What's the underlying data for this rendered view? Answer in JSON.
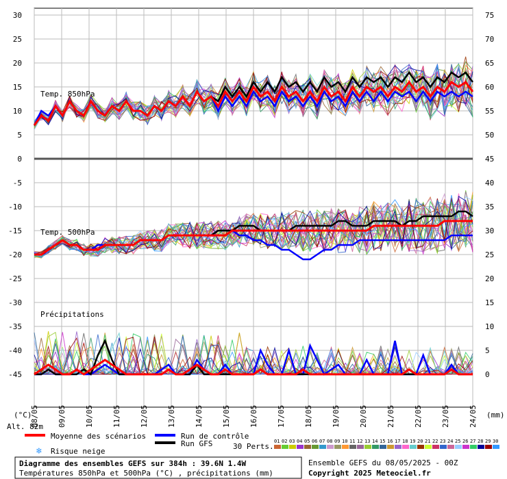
{
  "chart_data": {
    "type": "line",
    "panels": [
      {
        "name": "Temp. 850hPa",
        "left_ticks": [
          "30",
          "25",
          "20",
          "15",
          "10",
          "5",
          "0"
        ],
        "right_ticks": [
          "75",
          "70",
          "65",
          "60",
          "55",
          "50",
          "45"
        ],
        "series": [
          {
            "name": "Moyenne des scénarios",
            "color": "#ff0000",
            "values": [
              7,
              9,
              8,
              11,
              9,
              12,
              10,
              9,
              12,
              10,
              9,
              11,
              10,
              12,
              10,
              10,
              9,
              11,
              10,
              12,
              11,
              13,
              11,
              14,
              12,
              13,
              11,
              14,
              12,
              14,
              12,
              15,
              13,
              14,
              12,
              15,
              13,
              14,
              12,
              14,
              12,
              15,
              13,
              14,
              12,
              15,
              13,
              15,
              14,
              15,
              13,
              15,
              14,
              16,
              14,
              15,
              13,
              15,
              14,
              16,
              15,
              16,
              14
            ]
          },
          {
            "name": "Run de contrôle",
            "color": "#0000ff",
            "values": [
              7,
              10,
              9,
              11,
              9,
              12,
              10,
              9,
              12,
              10,
              9,
              11,
              10,
              12,
              10,
              10,
              9,
              11,
              10,
              12,
              11,
              13,
              11,
              14,
              12,
              13,
              10,
              13,
              11,
              13,
              11,
              14,
              12,
              13,
              11,
              14,
              12,
              13,
              11,
              13,
              11,
              14,
              12,
              13,
              11,
              14,
              12,
              14,
              12,
              14,
              12,
              14,
              13,
              14,
              12,
              14,
              12,
              14,
              13,
              14,
              13,
              14,
              13
            ]
          },
          {
            "name": "Run GFS",
            "color": "#000000",
            "values": [
              7,
              9,
              8,
              11,
              9,
              12,
              10,
              9,
              12,
              10,
              9,
              11,
              10,
              12,
              10,
              10,
              9,
              11,
              10,
              12,
              11,
              13,
              11,
              14,
              12,
              13,
              12,
              15,
              13,
              15,
              13,
              16,
              14,
              16,
              14,
              17,
              15,
              16,
              14,
              16,
              14,
              17,
              15,
              16,
              14,
              17,
              15,
              17,
              16,
              17,
              15,
              17,
              16,
              18,
              16,
              17,
              15,
              17,
              16,
              18,
              17,
              18,
              16
            ]
          }
        ]
      },
      {
        "name": "Temp. 500hPa",
        "left_ticks": [
          "-5",
          "-10",
          "-15",
          "-20",
          "-25"
        ],
        "right_ticks": [
          "40",
          "35",
          "30",
          "25",
          "20"
        ],
        "series": [
          {
            "name": "Moyenne des scénarios",
            "color": "#ff0000",
            "values": [
              -20,
              -20,
              -19,
              -18,
              -17,
              -18,
              -18,
              -19,
              -19,
              -19,
              -18,
              -18,
              -18,
              -18,
              -18,
              -17,
              -17,
              -17,
              -17,
              -16,
              -16,
              -16,
              -16,
              -16,
              -16,
              -16,
              -16,
              -16,
              -15,
              -15,
              -15,
              -15,
              -15,
              -15,
              -15,
              -15,
              -15,
              -15,
              -15,
              -15,
              -15,
              -15,
              -15,
              -15,
              -15,
              -15,
              -15,
              -15,
              -14,
              -14,
              -14,
              -14,
              -14,
              -14,
              -14,
              -14,
              -14,
              -14,
              -13,
              -13,
              -13,
              -13,
              -13
            ]
          },
          {
            "name": "Run de contrôle",
            "color": "#0000ff",
            "values": [
              -20,
              -20,
              -19,
              -18,
              -17,
              -18,
              -18,
              -19,
              -19,
              -18,
              -18,
              -18,
              -18,
              -18,
              -18,
              -17,
              -17,
              -17,
              -17,
              -16,
              -16,
              -16,
              -16,
              -16,
              -16,
              -16,
              -15,
              -15,
              -15,
              -16,
              -16,
              -17,
              -17,
              -18,
              -18,
              -19,
              -19,
              -20,
              -21,
              -21,
              -20,
              -19,
              -19,
              -18,
              -18,
              -18,
              -17,
              -17,
              -17,
              -17,
              -17,
              -17,
              -17,
              -17,
              -17,
              -17,
              -17,
              -17,
              -17,
              -16,
              -16,
              -16,
              -16
            ]
          },
          {
            "name": "Run GFS",
            "color": "#000000",
            "values": [
              -20,
              -20,
              -19,
              -18,
              -17,
              -18,
              -18,
              -19,
              -19,
              -19,
              -18,
              -18,
              -18,
              -18,
              -18,
              -17,
              -17,
              -17,
              -17,
              -16,
              -16,
              -16,
              -16,
              -16,
              -16,
              -16,
              -15,
              -15,
              -15,
              -14,
              -14,
              -14,
              -15,
              -15,
              -15,
              -15,
              -15,
              -14,
              -14,
              -14,
              -14,
              -14,
              -14,
              -13,
              -13,
              -14,
              -14,
              -14,
              -13,
              -13,
              -13,
              -13,
              -14,
              -13,
              -13,
              -12,
              -12,
              -12,
              -12,
              -12,
              -11,
              -11,
              -12
            ]
          }
        ]
      },
      {
        "name": "Précipitations",
        "left_ticks": [
          "-30",
          "-35",
          "-40",
          "-45"
        ],
        "right_ticks": [
          "15",
          "10",
          "5",
          "0"
        ],
        "series": [
          {
            "name": "Moyenne des scénarios",
            "color": "#ff0000",
            "values": [
              0,
              1,
              2,
              1,
              0,
              0,
              1,
              0,
              1,
              2,
              3,
              2,
              1,
              0,
              0,
              0,
              0,
              0,
              0,
              1,
              0,
              0,
              1,
              2,
              1,
              0,
              0,
              1,
              0,
              0,
              0,
              0,
              1,
              0,
              0,
              0,
              0,
              0,
              1,
              0,
              0,
              0,
              0,
              0,
              0,
              0,
              0,
              0,
              0,
              0,
              0,
              0,
              0,
              1,
              0,
              0,
              0,
              0,
              0,
              1,
              0,
              0,
              0
            ]
          },
          {
            "name": "Run de contrôle",
            "color": "#0000ff",
            "values": [
              0,
              0,
              1,
              0,
              0,
              0,
              1,
              0,
              0,
              1,
              2,
              1,
              0,
              0,
              0,
              0,
              0,
              0,
              1,
              2,
              0,
              0,
              0,
              3,
              1,
              0,
              0,
              2,
              0,
              0,
              0,
              0,
              5,
              2,
              0,
              0,
              5,
              0,
              0,
              6,
              3,
              0,
              1,
              2,
              0,
              0,
              0,
              3,
              0,
              0,
              0,
              7,
              0,
              0,
              0,
              4,
              0,
              0,
              0,
              2,
              0,
              0,
              0
            ]
          },
          {
            "name": "Run GFS",
            "color": "#000000",
            "values": [
              0,
              0,
              1,
              0,
              0,
              0,
              0,
              1,
              0,
              4,
              7,
              3,
              0,
              0,
              0,
              0,
              0,
              0,
              0,
              1,
              0,
              0,
              0,
              2,
              0,
              0,
              0,
              0,
              0,
              0,
              0,
              0,
              1,
              0,
              0,
              0,
              0,
              0,
              0,
              0,
              0,
              0,
              0,
              0,
              0,
              0,
              0,
              0,
              0,
              0,
              0,
              0,
              0,
              0,
              0,
              0,
              0,
              0,
              0,
              1,
              0,
              0,
              0
            ]
          }
        ]
      }
    ],
    "x_labels": [
      "08/05",
      "09/05",
      "10/05",
      "11/05",
      "12/05",
      "13/05",
      "14/05",
      "15/05",
      "16/05",
      "17/05",
      "18/05",
      "19/05",
      "20/05",
      "21/05",
      "22/05",
      "23/05",
      "24/05"
    ],
    "xlim_hours": [
      0,
      384
    ]
  },
  "labels": {
    "left_unit": "(°C)",
    "right_unit": "(mm)",
    "altitude": "Alt. 82m",
    "legend_mean": "Moyenne des scénarios",
    "legend_control": "Run de contrôle",
    "legend_gfs": "Run GFS",
    "legend_snow": "Risque neige",
    "perts_label": "30 Perts.",
    "title_line1": "Diagramme des ensembles GEFS sur 384h : 39.6N 1.4W",
    "title_line2": "Températures 850hPa et 500hPa (°C) , précipitations (mm)",
    "ensemble_info": "Ensemble GEFS du 08/05/2025 - 00Z",
    "copyright": "Copyright 2025 Meteociel.fr"
  },
  "perts": [
    {
      "num": "01",
      "color": "#cc6633"
    },
    {
      "num": "02",
      "color": "#66cc33"
    },
    {
      "num": "03",
      "color": "#cccc00"
    },
    {
      "num": "04",
      "color": "#9933cc"
    },
    {
      "num": "05",
      "color": "#996633"
    },
    {
      "num": "06",
      "color": "#669933"
    },
    {
      "num": "07",
      "color": "#3399cc"
    },
    {
      "num": "08",
      "color": "#cc99cc"
    },
    {
      "num": "09",
      "color": "#999966"
    },
    {
      "num": "10",
      "color": "#ff9933"
    },
    {
      "num": "11",
      "color": "#666666"
    },
    {
      "num": "12",
      "color": "#996699"
    },
    {
      "num": "13",
      "color": "#99cc33"
    },
    {
      "num": "14",
      "color": "#339966"
    },
    {
      "num": "15",
      "color": "#336699"
    },
    {
      "num": "16",
      "color": "#cc9933"
    },
    {
      "num": "17",
      "color": "#9966cc"
    },
    {
      "num": "18",
      "color": "#ff66cc"
    },
    {
      "num": "19",
      "color": "#66cccc"
    },
    {
      "num": "20",
      "color": "#993300"
    },
    {
      "num": "21",
      "color": "#ccff33"
    },
    {
      "num": "22",
      "color": "#cc3366"
    },
    {
      "num": "23",
      "color": "#3366cc"
    },
    {
      "num": "24",
      "color": "#cc6699"
    },
    {
      "num": "25",
      "color": "#99ccff"
    },
    {
      "num": "26",
      "color": "#cc33cc"
    },
    {
      "num": "27",
      "color": "#33cc66"
    },
    {
      "num": "28",
      "color": "#000099"
    },
    {
      "num": "29",
      "color": "#990000"
    },
    {
      "num": "30",
      "color": "#3399ff"
    }
  ]
}
